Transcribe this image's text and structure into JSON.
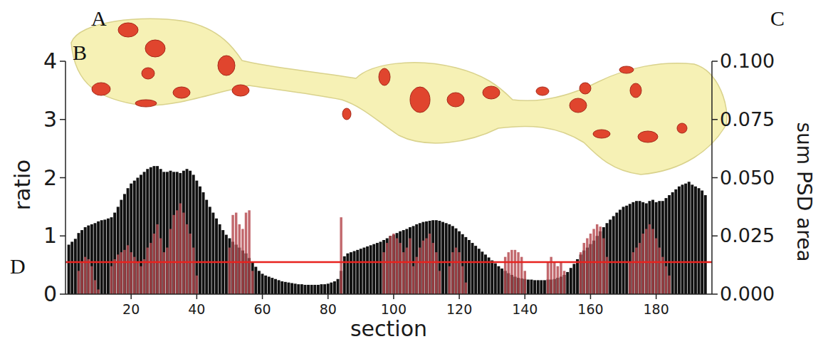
{
  "chart_data": {
    "type": "bar",
    "xlabel": "section",
    "ylabel": "ratio",
    "y2label": "sum PSD area",
    "panel_labels": [
      "A",
      "B",
      "C",
      "D"
    ],
    "x": [
      1,
      2,
      3,
      4,
      5,
      6,
      7,
      8,
      9,
      10,
      11,
      12,
      13,
      14,
      15,
      16,
      17,
      18,
      19,
      20,
      21,
      22,
      23,
      24,
      25,
      26,
      27,
      28,
      29,
      30,
      31,
      32,
      33,
      34,
      35,
      36,
      37,
      38,
      39,
      40,
      41,
      42,
      43,
      44,
      45,
      46,
      47,
      48,
      49,
      50,
      51,
      52,
      53,
      54,
      55,
      56,
      57,
      58,
      59,
      60,
      61,
      62,
      63,
      64,
      65,
      66,
      67,
      68,
      69,
      70,
      71,
      72,
      73,
      74,
      75,
      76,
      77,
      78,
      79,
      80,
      81,
      82,
      83,
      84,
      85,
      86,
      87,
      88,
      89,
      90,
      91,
      92,
      93,
      94,
      95,
      96,
      97,
      98,
      99,
      100,
      101,
      102,
      103,
      104,
      105,
      106,
      107,
      108,
      109,
      110,
      111,
      112,
      113,
      114,
      115,
      116,
      117,
      118,
      119,
      120,
      121,
      122,
      123,
      124,
      125,
      126,
      127,
      128,
      129,
      130,
      131,
      132,
      133,
      134,
      135,
      136,
      137,
      138,
      139,
      140,
      141,
      142,
      143,
      144,
      145,
      146,
      147,
      148,
      149,
      150,
      151,
      152,
      153,
      154,
      155,
      156,
      157,
      158,
      159,
      160,
      161,
      162,
      163,
      164,
      165,
      166,
      167,
      168,
      169,
      170,
      171,
      172,
      173,
      174,
      175,
      176,
      177,
      178,
      179,
      180,
      181,
      182,
      183,
      184,
      185,
      186,
      187,
      188,
      189,
      190,
      191,
      192,
      193,
      194,
      195
    ],
    "series": [
      {
        "color": "#111111",
        "values": [
          0.85,
          0.9,
          0.95,
          1.05,
          1.1,
          1.15,
          1.18,
          1.2,
          1.22,
          1.25,
          1.27,
          1.28,
          1.3,
          1.32,
          1.4,
          1.5,
          1.62,
          1.72,
          1.82,
          1.9,
          1.95,
          2.0,
          2.05,
          2.1,
          2.15,
          2.18,
          2.2,
          2.2,
          2.15,
          2.1,
          2.1,
          2.12,
          2.1,
          2.1,
          2.08,
          2.12,
          2.15,
          2.12,
          2.05,
          1.95,
          1.85,
          1.75,
          1.62,
          1.5,
          1.4,
          1.3,
          1.2,
          1.1,
          1.02,
          0.96,
          0.9,
          0.85,
          0.8,
          0.75,
          0.7,
          0.62,
          0.55,
          0.47,
          0.4,
          0.35,
          0.32,
          0.3,
          0.28,
          0.26,
          0.24,
          0.22,
          0.21,
          0.2,
          0.19,
          0.18,
          0.17,
          0.17,
          0.16,
          0.16,
          0.16,
          0.16,
          0.16,
          0.17,
          0.17,
          0.18,
          0.2,
          0.22,
          0.26,
          0.4,
          0.65,
          0.7,
          0.72,
          0.74,
          0.76,
          0.78,
          0.8,
          0.82,
          0.84,
          0.86,
          0.88,
          0.9,
          0.93,
          0.96,
          1.0,
          1.02,
          1.05,
          1.08,
          1.1,
          1.12,
          1.15,
          1.17,
          1.2,
          1.22,
          1.24,
          1.25,
          1.26,
          1.27,
          1.27,
          1.26,
          1.24,
          1.22,
          1.2,
          1.17,
          1.13,
          1.08,
          1.03,
          0.98,
          0.93,
          0.88,
          0.83,
          0.78,
          0.73,
          0.68,
          0.63,
          0.58,
          0.53,
          0.48,
          0.44,
          0.4,
          0.36,
          0.33,
          0.3,
          0.28,
          0.27,
          0.26,
          0.25,
          0.25,
          0.24,
          0.24,
          0.24,
          0.24,
          0.25,
          0.25,
          0.26,
          0.28,
          0.3,
          0.33,
          0.38,
          0.45,
          0.52,
          0.6,
          0.68,
          0.75,
          0.8,
          0.86,
          0.92,
          1.0,
          1.08,
          1.15,
          1.22,
          1.28,
          1.34,
          1.4,
          1.45,
          1.5,
          1.52,
          1.55,
          1.58,
          1.6,
          1.6,
          1.58,
          1.56,
          1.6,
          1.62,
          1.58,
          1.6,
          1.6,
          1.65,
          1.7,
          1.75,
          1.8,
          1.85,
          1.88,
          1.9,
          1.93,
          1.88,
          1.85,
          1.82,
          1.78,
          1.7
        ]
      },
      {
        "color": "#b5474d",
        "axis": "y2",
        "values": [
          0,
          0,
          0,
          0.01,
          0.014,
          0.016,
          0.015,
          0.012,
          0.006,
          0.002,
          0,
          0,
          0,
          0.012,
          0.015,
          0.017,
          0.018,
          0.019,
          0.021,
          0.018,
          0.016,
          0.014,
          0.012,
          0.015,
          0.02,
          0.022,
          0.026,
          0.03,
          0.024,
          0.018,
          0.02,
          0.028,
          0.034,
          0.036,
          0.039,
          0.035,
          0.03,
          0.026,
          0.02,
          0.008,
          0,
          0,
          0,
          0,
          0,
          0,
          0,
          0,
          0,
          0.02,
          0.034,
          0.035,
          0.03,
          0.028,
          0.035,
          0.036,
          0.01,
          0,
          0,
          0,
          0,
          0,
          0,
          0,
          0,
          0,
          0,
          0,
          0,
          0,
          0,
          0,
          0,
          0,
          0,
          0,
          0,
          0,
          0,
          0,
          0,
          0,
          0,
          0.033,
          0,
          0,
          0,
          0,
          0,
          0,
          0,
          0,
          0,
          0,
          0,
          0,
          0.018,
          0.022,
          0.025,
          0.026,
          0.024,
          0.022,
          0.018,
          0.02,
          0.024,
          0.012,
          0.016,
          0.02,
          0.023,
          0.024,
          0.026,
          0.022,
          0.018,
          0.01,
          0,
          0,
          0.012,
          0.018,
          0.02,
          0.018,
          0.012,
          0.005,
          0,
          0,
          0,
          0,
          0,
          0,
          0,
          0,
          0,
          0,
          0,
          0.016,
          0.018,
          0.019,
          0.019,
          0.018,
          0.016,
          0.01,
          0,
          0,
          0,
          0,
          0,
          0,
          0.014,
          0.016,
          0.014,
          0.012,
          0.014,
          0.01,
          0,
          0,
          0,
          0,
          0.018,
          0.022,
          0.024,
          0.026,
          0.028,
          0.03,
          0.029,
          0.024,
          0.016,
          0,
          0,
          0,
          0,
          0,
          0,
          0.014,
          0.018,
          0.02,
          0.022,
          0.026,
          0.028,
          0.03,
          0.028,
          0.024,
          0.02,
          0.016,
          0.012,
          0.008,
          0,
          0,
          0,
          0,
          0,
          0,
          0,
          0,
          0,
          0,
          0
        ]
      }
    ],
    "reference_line": {
      "value": 0.55,
      "color": "#e8231f"
    },
    "xlim": [
      0,
      197
    ],
    "xticks": [
      20,
      40,
      60,
      80,
      100,
      120,
      140,
      160,
      180
    ],
    "ylim": [
      0,
      4
    ],
    "yticks": [
      0,
      1,
      2,
      3,
      4
    ],
    "y2lim": [
      0,
      0.1
    ],
    "y2ticks": [
      {
        "value": 0,
        "label": "0.000"
      },
      {
        "value": 0.025,
        "label": "0.025"
      },
      {
        "value": 0.05,
        "label": "0.050"
      },
      {
        "value": 0.075,
        "label": "0.075"
      },
      {
        "value": 0.1,
        "label": "0.100"
      }
    ]
  }
}
